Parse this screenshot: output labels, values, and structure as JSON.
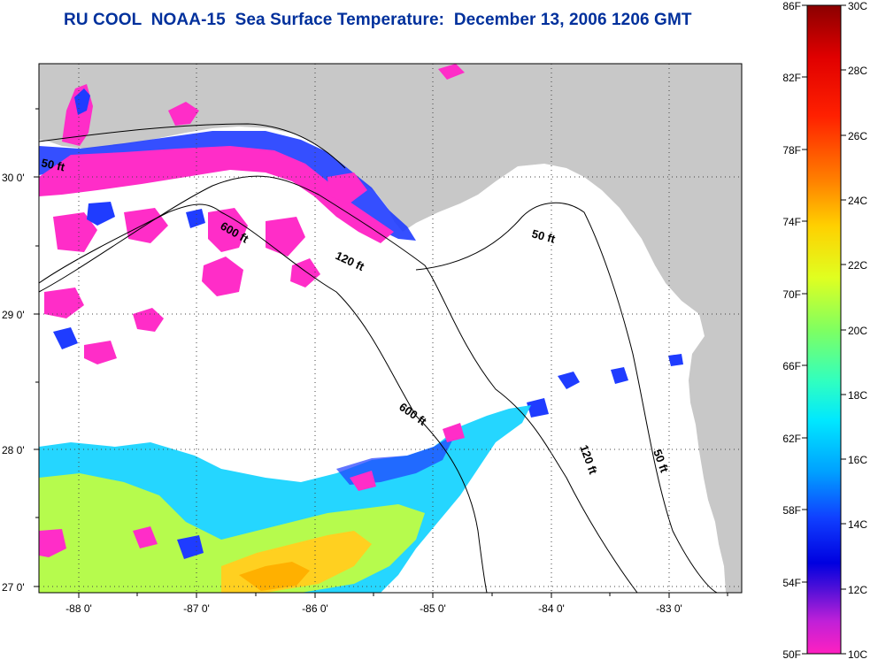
{
  "title": "RU COOL  NOAA-15  Sea Surface Temperature:  December 13, 2006 1206 GMT",
  "map": {
    "lon_labels": [
      "-88 0'",
      "-87 0'",
      "-86 0'",
      "-85 0'",
      "-84 0'",
      "-83 0'"
    ],
    "lat_labels": [
      "30 0'",
      "29 0'",
      "28 0'",
      "27 0'"
    ],
    "isobaths": [
      "50 ft",
      "600 ft",
      "120 ft",
      "50 ft",
      "600 ft",
      "120 ft",
      "50 ft"
    ],
    "colors": {
      "land": "#c8c8c8",
      "water": "#ffffff",
      "cold": "#ff2dc8",
      "cool": "#1f3cff",
      "mild": "#19d4ff",
      "warm": "#c6ff3a",
      "warmer": "#ffb000"
    }
  },
  "colorbar": {
    "fahrenheit": [
      "86F",
      "82F",
      "78F",
      "74F",
      "70F",
      "66F",
      "62F",
      "58F",
      "54F",
      "50F"
    ],
    "celsius": [
      "30C",
      "28C",
      "26C",
      "24C",
      "22C",
      "20C",
      "18C",
      "16C",
      "14C",
      "12C",
      "10C"
    ]
  }
}
